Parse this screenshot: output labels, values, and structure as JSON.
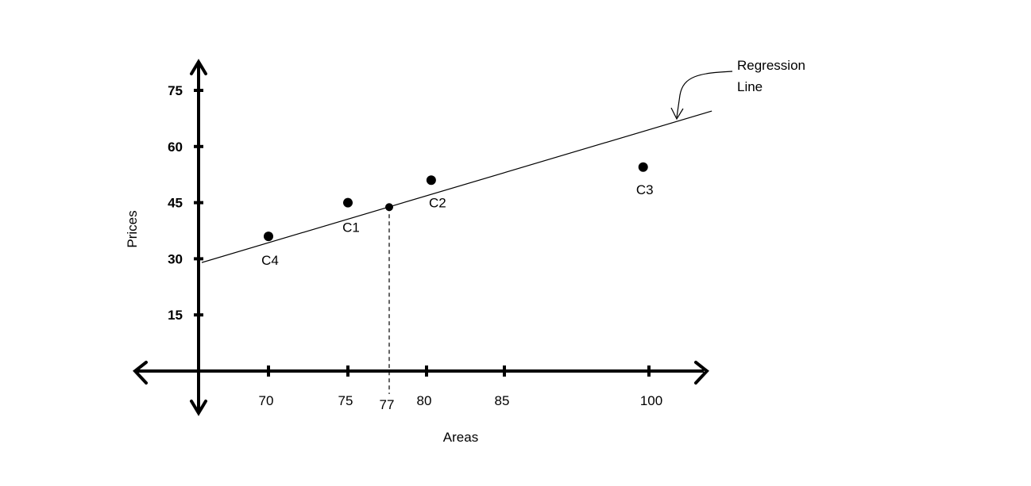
{
  "chart_data": {
    "type": "scatter",
    "xlabel": "Areas",
    "ylabel": "Prices",
    "xticks": [
      70,
      75,
      77,
      80,
      85,
      100
    ],
    "yticks": [
      15,
      30,
      45,
      60,
      75
    ],
    "points": [
      {
        "label": "C4",
        "x": 70,
        "y": 36
      },
      {
        "label": "C1",
        "x": 75,
        "y": 45
      },
      {
        "label": "C2",
        "x": 80.3,
        "y": 51
      },
      {
        "label": "C3",
        "x": 99.4,
        "y": 54.5
      }
    ],
    "predicted_point": {
      "x": 77,
      "y": 43.8
    },
    "regression_line": {
      "x_start": 65.8,
      "y_start": 29,
      "x_end": 99.6,
      "y_end": 68
    },
    "annotation": [
      "Regression",
      "Line"
    ]
  }
}
